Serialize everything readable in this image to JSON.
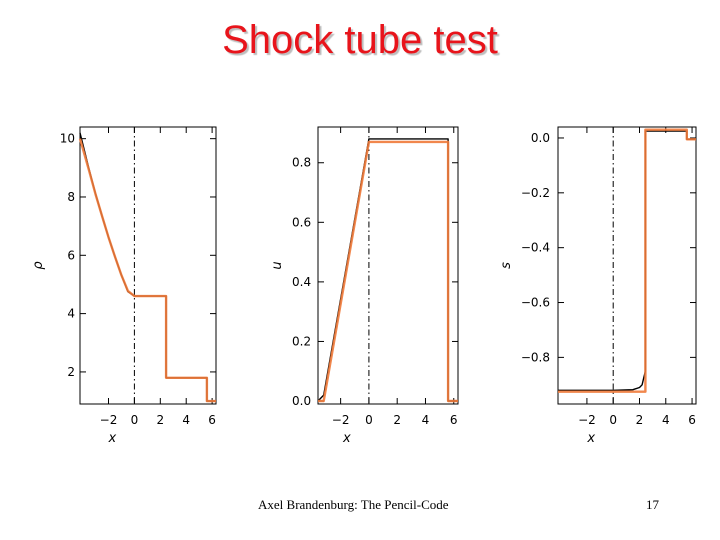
{
  "slide": {
    "title": "Shock tube test",
    "footer": "Axel Brandenburg: The Pencil-Code",
    "page_number": "17"
  },
  "colors": {
    "title": "#e8141b",
    "numerical": "#000000",
    "analytic": "#f07a3a",
    "axes": "#000000"
  },
  "chart_data": [
    {
      "type": "line",
      "title": "",
      "xlabel": "x",
      "ylabel": "ρ",
      "xlim": [
        -4.2,
        6.3
      ],
      "ylim": [
        0.9,
        10.4
      ],
      "xticks": [
        -2,
        0,
        2,
        4,
        6
      ],
      "yticks": [
        2,
        4,
        6,
        8,
        10
      ],
      "ytick_labels": [
        "2",
        "4",
        "6",
        "8",
        "10"
      ],
      "vline": 0,
      "grid": false,
      "series": [
        {
          "x": [
            -4.2,
            -3.5,
            -3.0,
            -2.5,
            -2.0,
            -1.5,
            -1.0,
            -0.5,
            0.0,
            2.45,
            2.45,
            5.6,
            5.6,
            6.3
          ],
          "y": [
            10.2,
            8.95,
            8.12,
            7.35,
            6.62,
            5.95,
            5.32,
            4.75,
            4.6,
            4.6,
            1.8,
            1.8,
            1.0,
            1.0
          ]
        },
        {
          "x": [
            -4.2,
            -3.5,
            -3.0,
            -2.5,
            -2.0,
            -1.5,
            -1.0,
            -0.5,
            0.0,
            2.45,
            2.45,
            5.6,
            5.6,
            6.3
          ],
          "y": [
            10.0,
            8.9,
            8.1,
            7.35,
            6.62,
            5.95,
            5.32,
            4.78,
            4.6,
            4.6,
            1.8,
            1.8,
            1.0,
            1.0
          ]
        }
      ]
    },
    {
      "type": "line",
      "title": "",
      "xlabel": "x",
      "ylabel": "u",
      "xlim": [
        -3.6,
        6.3
      ],
      "ylim": [
        -0.01,
        0.92
      ],
      "xticks": [
        -2,
        0,
        2,
        4,
        6
      ],
      "yticks": [
        0.0,
        0.2,
        0.4,
        0.6,
        0.8
      ],
      "ytick_labels": [
        "0.0",
        "0.2",
        "0.4",
        "0.6",
        "0.8"
      ],
      "vline": 0,
      "grid": false,
      "series": [
        {
          "x": [
            -3.6,
            -3.2,
            0.0,
            5.6,
            5.6,
            6.3
          ],
          "y": [
            0.0,
            0.02,
            0.88,
            0.88,
            0.0,
            0.0
          ]
        },
        {
          "x": [
            -3.6,
            -3.2,
            0.0,
            5.6,
            5.6,
            6.3
          ],
          "y": [
            0.0,
            0.0,
            0.87,
            0.87,
            0.0,
            0.0
          ]
        }
      ]
    },
    {
      "type": "line",
      "title": "",
      "xlabel": "x",
      "ylabel": "s",
      "xlim": [
        -4.2,
        6.3
      ],
      "ylim": [
        -0.97,
        0.04
      ],
      "xticks": [
        -2,
        0,
        2,
        4,
        6
      ],
      "yticks": [
        0.0,
        -0.2,
        -0.4,
        -0.6,
        -0.8
      ],
      "ytick_labels": [
        "0.0",
        "−0.2",
        "−0.4",
        "−0.6",
        "−0.8"
      ],
      "vline": 0,
      "grid": false,
      "series": [
        {
          "x": [
            -4.2,
            0.0,
            1.5,
            2.0,
            2.2,
            2.3,
            2.45,
            2.45,
            5.6,
            5.6,
            6.3
          ],
          "y": [
            -0.92,
            -0.92,
            -0.918,
            -0.91,
            -0.9,
            -0.88,
            -0.85,
            0.025,
            0.025,
            -0.005,
            -0.005
          ]
        },
        {
          "x": [
            -4.2,
            0.0,
            2.45,
            2.45,
            5.6,
            5.6,
            6.3
          ],
          "y": [
            -0.925,
            -0.925,
            -0.925,
            0.03,
            0.03,
            -0.005,
            -0.005
          ]
        }
      ]
    }
  ]
}
